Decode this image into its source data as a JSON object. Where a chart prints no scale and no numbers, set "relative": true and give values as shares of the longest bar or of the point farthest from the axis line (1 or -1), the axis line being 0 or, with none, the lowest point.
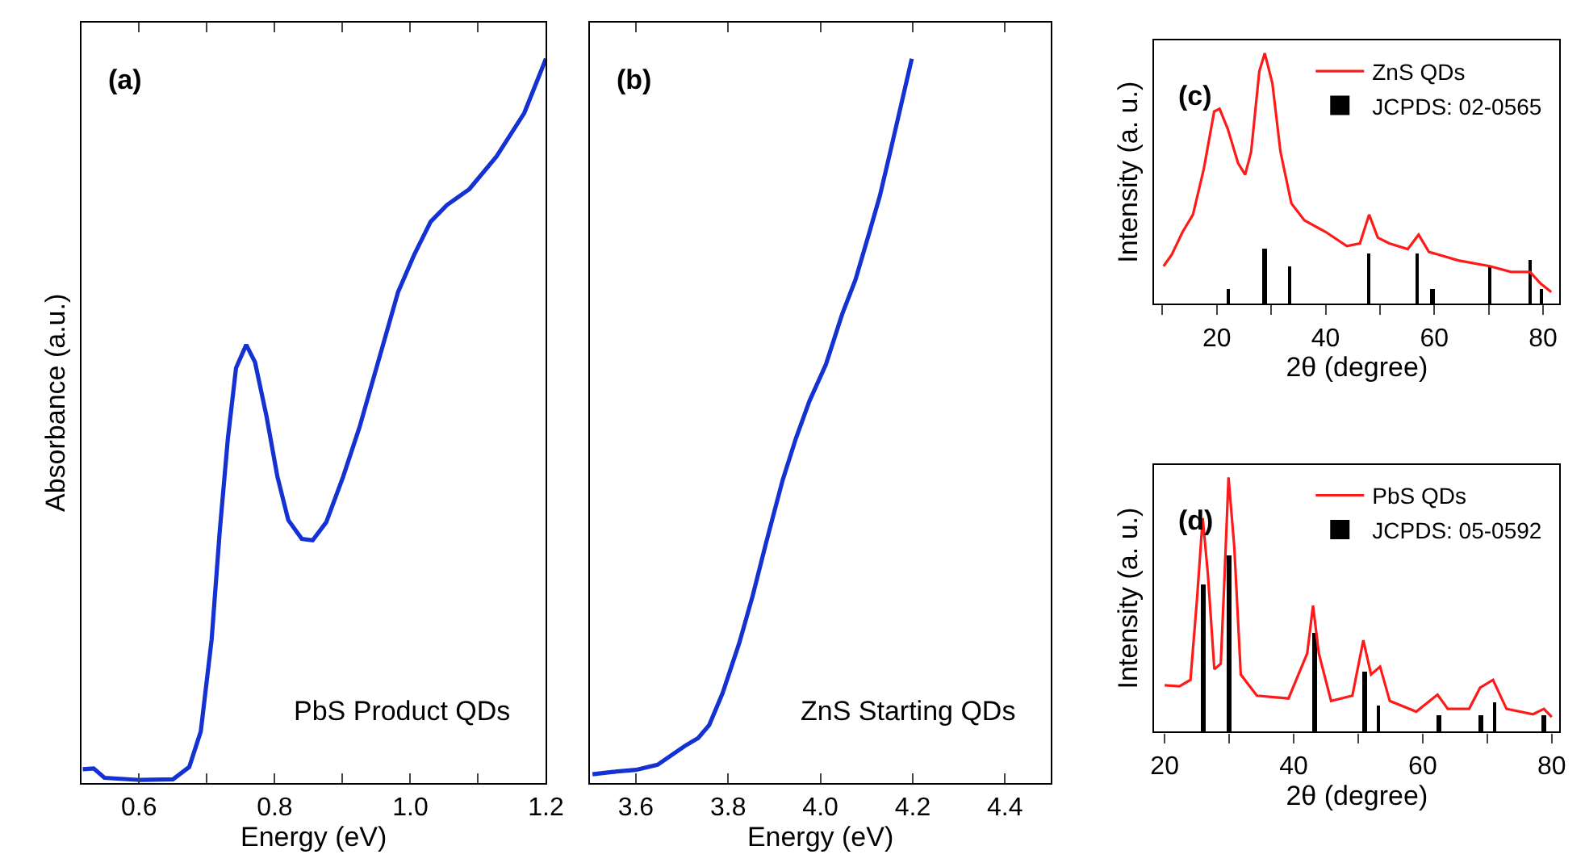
{
  "chart_data": [
    {
      "type": "line",
      "relative": true,
      "xlabel": "Energy (eV)",
      "ylabel": "Absorbance (a.u.)",
      "xlim": [
        0.515,
        1.2
      ],
      "xticks": [
        0.6,
        {
          "value": 0.7,
          "label": null
        },
        0.8,
        {
          "value": 0.9,
          "label": null
        },
        "1.0",
        {
          "value": 1.1,
          "label": null
        },
        1.2
      ],
      "legend": false,
      "annotations": [
        "(a)",
        "PbS Product QDs"
      ],
      "series": [
        {
          "color": "#1432d2",
          "x": [
            0.517,
            0.533,
            0.549,
            0.602,
            0.65,
            0.674,
            0.691,
            0.707,
            0.719,
            0.731,
            0.743,
            0.758,
            0.771,
            0.788,
            0.804,
            0.82,
            0.84,
            0.856,
            0.876,
            0.901,
            0.925,
            0.957,
            0.982,
            1.006,
            1.03,
            1.054,
            1.087,
            1.127,
            1.168,
            1.2
          ],
          "values": [
            0.019,
            0.02,
            0.007,
            0.004,
            0.005,
            0.022,
            0.071,
            0.198,
            0.348,
            0.476,
            0.573,
            0.605,
            0.581,
            0.506,
            0.423,
            0.363,
            0.337,
            0.335,
            0.36,
            0.423,
            0.491,
            0.596,
            0.678,
            0.73,
            0.775,
            0.798,
            0.82,
            0.865,
            0.925,
            1.0
          ]
        }
      ]
    },
    {
      "type": "line",
      "relative": true,
      "xlabel": "Energy (eV)",
      "xlim": [
        3.5,
        4.5
      ],
      "xticks": [
        3.6,
        3.8,
        "4.0",
        4.2,
        4.4
      ],
      "legend": false,
      "annotations": [
        "(b)",
        "ZnS Starting QDs"
      ],
      "series": [
        {
          "color": "#1432d2",
          "x": [
            3.506,
            3.547,
            3.6,
            3.647,
            3.706,
            3.735,
            3.759,
            3.788,
            3.824,
            3.853,
            3.882,
            3.918,
            3.947,
            3.976,
            4.012,
            4.047,
            4.076,
            4.106,
            4.129,
            4.153,
            4.198
          ],
          "values": [
            0.012,
            0.015,
            0.018,
            0.025,
            0.051,
            0.062,
            0.08,
            0.124,
            0.193,
            0.258,
            0.331,
            0.418,
            0.476,
            0.527,
            0.578,
            0.647,
            0.695,
            0.76,
            0.811,
            0.876,
            1.0
          ]
        }
      ]
    },
    {
      "type": "line",
      "relative": true,
      "xlabel": "2θ (degree)",
      "ylabel": "Intensity (a. u.)",
      "xlim": [
        8.5,
        83
      ],
      "xticks": [
        {
          "value": 10,
          "label": null
        },
        20,
        {
          "value": 30,
          "label": null
        },
        40,
        {
          "value": 50,
          "label": null
        },
        60,
        {
          "value": 70,
          "label": null
        },
        80
      ],
      "legend": "top right",
      "annotations": [
        "(c)"
      ],
      "series": [
        {
          "name": "ZnS QDs",
          "color": "#ff1a1a",
          "x": [
            10.2,
            11.7,
            13.7,
            15.6,
            17.6,
            19.5,
            20.5,
            22.0,
            23.9,
            25.2,
            26.3,
            27.8,
            28.8,
            30.2,
            31.7,
            33.7,
            36.1,
            40.0,
            43.9,
            46.3,
            48.0,
            49.6,
            51.7,
            55.1,
            57.1,
            59.0,
            64.4,
            70.2,
            74.1,
            77.6,
            79.5,
            81.5
          ],
          "values": [
            0.149,
            0.195,
            0.286,
            0.355,
            0.538,
            0.767,
            0.778,
            0.698,
            0.561,
            0.515,
            0.606,
            0.927,
            1.0,
            0.881,
            0.606,
            0.4,
            0.332,
            0.286,
            0.229,
            0.24,
            0.355,
            0.263,
            0.24,
            0.217,
            0.275,
            0.206,
            0.172,
            0.149,
            0.126,
            0.126,
            0.08,
            0.046
          ]
        },
        {
          "name": "JCPDS: 02-0565",
          "type": "bar",
          "color": "#000000",
          "x": [
            22.2,
            28.8,
            33.4,
            48.0,
            56.8,
            59.7,
            70.2,
            77.6,
            79.8
          ],
          "values": [
            0.057,
            0.217,
            0.149,
            0.195,
            0.195,
            0.057,
            0.149,
            0.172,
            0.057
          ]
        }
      ]
    },
    {
      "type": "line",
      "relative": true,
      "xlabel": "2θ (degree)",
      "ylabel": "Intensity (a. u.)",
      "xlim": [
        18.4,
        81.2
      ],
      "xticks": [
        20,
        {
          "value": 30,
          "label": null
        },
        40,
        {
          "value": 50,
          "label": null
        },
        60,
        {
          "value": 70,
          "label": null
        },
        80
      ],
      "legend": "top right",
      "annotations": [
        "(d)"
      ],
      "series": [
        {
          "name": "PbS QDs",
          "color": "#ff1a1a",
          "x": [
            20.0,
            22.3,
            24.0,
            25.0,
            25.9,
            26.7,
            27.7,
            28.7,
            29.3,
            29.9,
            30.8,
            31.8,
            34.3,
            39.2,
            42.1,
            43.0,
            43.9,
            45.8,
            49.1,
            50.8,
            52.0,
            53.4,
            54.9,
            59.0,
            62.3,
            63.9,
            67.2,
            68.9,
            70.9,
            73.0,
            77.1,
            78.8,
            80.0
          ],
          "values": [
            0.183,
            0.179,
            0.204,
            0.517,
            0.84,
            0.621,
            0.246,
            0.267,
            0.621,
            1.0,
            0.725,
            0.225,
            0.142,
            0.131,
            0.308,
            0.496,
            0.308,
            0.121,
            0.142,
            0.36,
            0.225,
            0.256,
            0.121,
            0.079,
            0.146,
            0.09,
            0.09,
            0.173,
            0.204,
            0.09,
            0.069,
            0.09,
            0.058
          ]
        },
        {
          "name": "JCPDS: 05-0592",
          "type": "bar",
          "color": "#000000",
          "x": [
            26.0,
            30.0,
            43.2,
            51.0,
            53.2,
            62.5,
            69.1,
            71.2,
            78.9
          ],
          "values": [
            0.583,
            0.694,
            0.392,
            0.24,
            0.106,
            0.065,
            0.065,
            0.115,
            0.065
          ]
        }
      ]
    }
  ]
}
